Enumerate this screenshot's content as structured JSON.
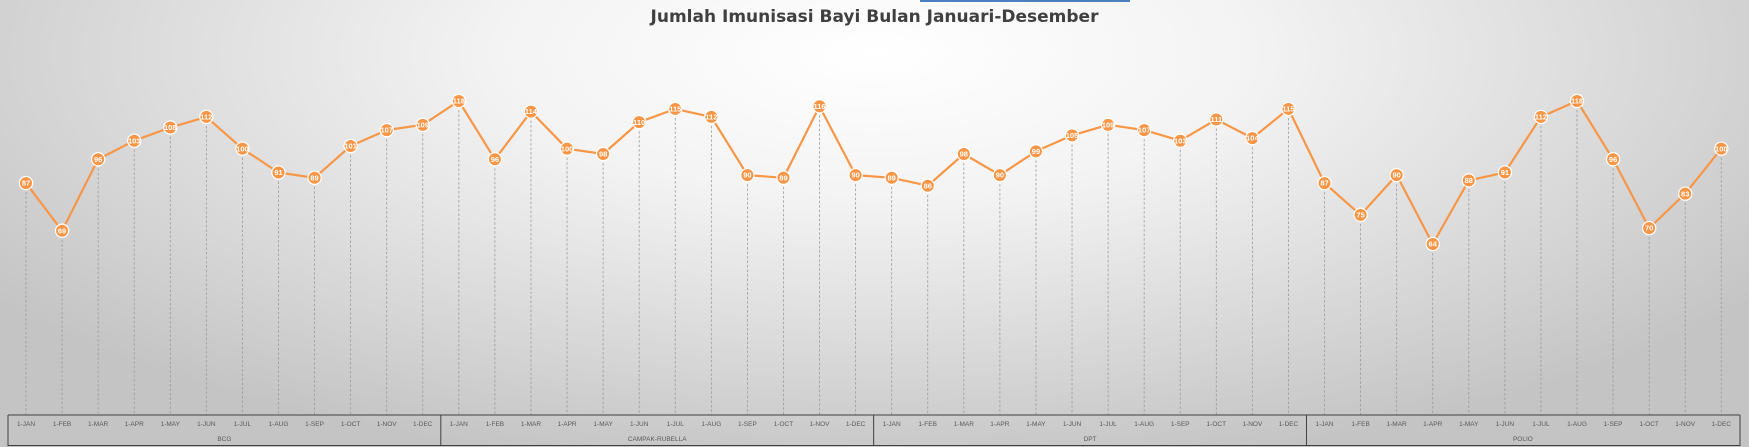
{
  "chart_data": {
    "type": "line",
    "title": "Jumlah Imunisasi Bayi Bulan Januari-Desember",
    "xlabel": "",
    "ylabel": "",
    "legend": "none",
    "grid": "vertical dashed drop lines",
    "line_color": "#f79646",
    "groups": [
      {
        "name": "BCG",
        "months": [
          "1-JAN",
          "1-FEB",
          "1-MAR",
          "1-APR",
          "1-MAY",
          "1-JUN",
          "1-JUL",
          "1-AUG",
          "1-SEP",
          "1-OCT",
          "1-NOV",
          "1-DEC"
        ],
        "values": [
          87,
          69,
          96,
          103,
          108,
          112,
          100,
          91,
          89,
          101,
          107,
          109
        ]
      },
      {
        "name": "CAMPAK-RUBELLA",
        "months": [
          "1-JAN",
          "1-FEB",
          "1-MAR",
          "1-APR",
          "1-MAY",
          "1-JUN",
          "1-JUL",
          "1-AUG",
          "1-SEP",
          "1-OCT",
          "1-NOV",
          "1-DEC"
        ],
        "values": [
          118,
          96,
          114,
          100,
          98,
          110,
          115,
          112,
          90,
          89,
          116,
          90
        ]
      },
      {
        "name": "DPT",
        "months": [
          "1-JAN",
          "1-FEB",
          "1-MAR",
          "1-APR",
          "1-MAY",
          "1-JUN",
          "1-JUL",
          "1-AUG",
          "1-SEP",
          "1-OCT",
          "1-NOV",
          "1-DEC"
        ],
        "values": [
          89,
          86,
          98,
          90,
          99,
          105,
          109,
          107,
          103,
          111,
          104,
          115
        ]
      },
      {
        "name": "POLIO",
        "months": [
          "1-JAN",
          "1-FEB",
          "1-MAR",
          "1-APR",
          "1-MAY",
          "1-JUN",
          "1-JUL",
          "1-AUG",
          "1-SEP",
          "1-OCT",
          "1-NOV",
          "1-DEC"
        ],
        "values": [
          87,
          75,
          90,
          64,
          88,
          91,
          112,
          118,
          96,
          70,
          83,
          100
        ]
      }
    ]
  }
}
